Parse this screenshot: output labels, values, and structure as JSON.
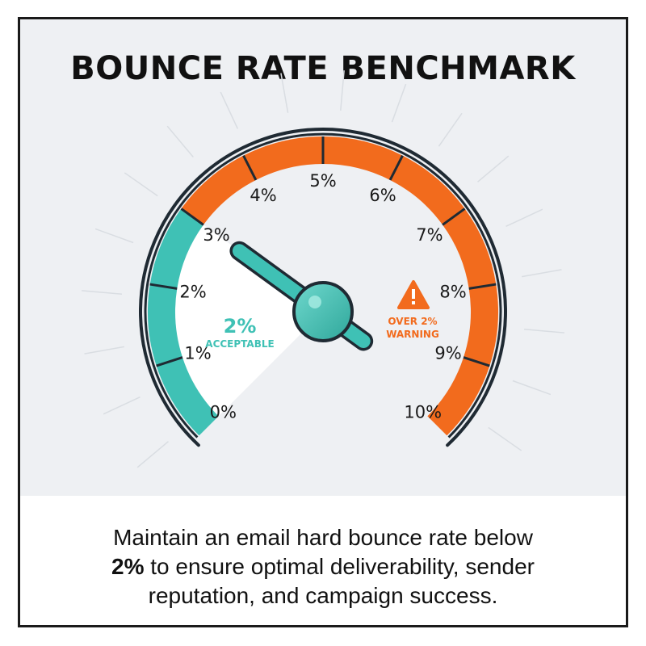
{
  "title": "BOUNCE RATE BENCHMARK",
  "gauge": {
    "scale_labels": [
      "0%",
      "1%",
      "2%",
      "3%",
      "4%",
      "5%",
      "6%",
      "7%",
      "8%",
      "9%",
      "10%"
    ],
    "min": 0,
    "max": 10,
    "needle_value": 3,
    "acceptable_threshold": 2,
    "acceptable_value": "2%",
    "acceptable_label": "ACCEPTABLE",
    "warning_line1": "OVER 2%",
    "warning_line2": "WARNING",
    "warning_icon": "warning-triangle-icon"
  },
  "caption": {
    "line1": "Maintain an email hard bounce rate below",
    "line2_bold": "2%",
    "line2_rest": " to ensure optimal deliverability, sender",
    "line3": "reputation, and campaign success."
  },
  "colors": {
    "acceptable": "#3fc1b5",
    "warning": "#f26b1d",
    "needle": "#3fc1b5",
    "outline": "#1f2a33",
    "background": "#eef0f3"
  }
}
